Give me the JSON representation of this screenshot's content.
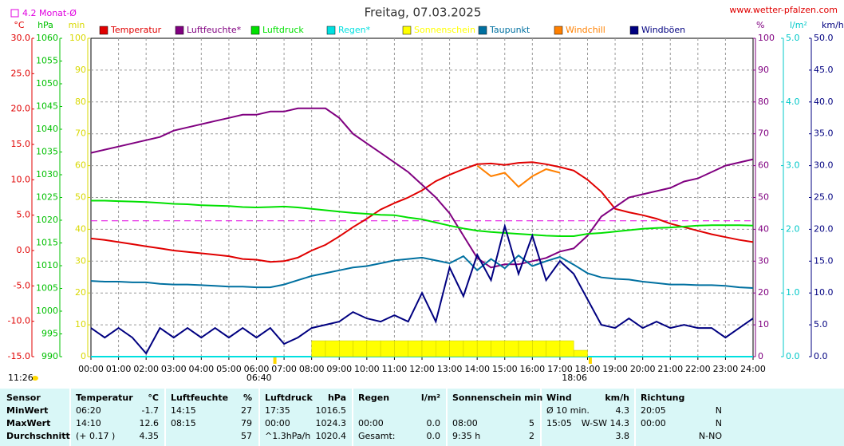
{
  "chart_data": {
    "type": "line",
    "title": "Freitag, 07.03.2025",
    "website": "www.wetter-pfalzen.com",
    "month_avg": {
      "value": 4.2,
      "label": "4.2 Monat-Ø",
      "axis": 0,
      "color": "#e000e0"
    },
    "daylength": "11:26",
    "sunrise": {
      "x": 6.667,
      "label": "06:40"
    },
    "sunset": {
      "x": 18.1,
      "label": "18:06"
    },
    "xlim": [
      0,
      24
    ],
    "xticks": [
      {
        "value": 0,
        "label": "00:00"
      },
      {
        "value": 1,
        "label": "01:00"
      },
      {
        "value": 2,
        "label": "02:00"
      },
      {
        "value": 3,
        "label": "03:00"
      },
      {
        "value": 4,
        "label": "04:00"
      },
      {
        "value": 5,
        "label": "05:00"
      },
      {
        "value": 6,
        "label": "06:00"
      },
      {
        "value": 7,
        "label": "07:00"
      },
      {
        "value": 8,
        "label": "08:00"
      },
      {
        "value": 9,
        "label": "09:00"
      },
      {
        "value": 10,
        "label": "10:00"
      },
      {
        "value": 11,
        "label": "11:00"
      },
      {
        "value": 12,
        "label": "12:00"
      },
      {
        "value": 13,
        "label": "13:00"
      },
      {
        "value": 14,
        "label": "14:00"
      },
      {
        "value": 15,
        "label": "15:00"
      },
      {
        "value": 16,
        "label": "16:00"
      },
      {
        "value": 17,
        "label": "17:00"
      },
      {
        "value": 18,
        "label": "18:00"
      },
      {
        "value": 19,
        "label": "19:00"
      },
      {
        "value": 20,
        "label": "20:00"
      },
      {
        "value": 21,
        "label": "21:00"
      },
      {
        "value": 22,
        "label": "22:00"
      },
      {
        "value": 23,
        "label": "23:00"
      },
      {
        "value": 24,
        "label": "24:00"
      }
    ],
    "grid": true,
    "y_axes": [
      {
        "unit": "°C",
        "color": "#e00000",
        "side": "left",
        "lim": [
          -15,
          30
        ],
        "ticks": [
          {
            "value": -15,
            "label": "-15.0"
          },
          {
            "value": -10,
            "label": "-10.0"
          },
          {
            "value": -5,
            "label": "-5.0"
          },
          {
            "value": 0,
            "label": "0.0"
          },
          {
            "value": 5,
            "label": "5.0"
          },
          {
            "value": 10,
            "label": "10.0"
          },
          {
            "value": 15,
            "label": "15.0"
          },
          {
            "value": 20,
            "label": "20.0"
          },
          {
            "value": 25,
            "label": "25.0"
          },
          {
            "value": 30,
            "label": "30.0"
          }
        ]
      },
      {
        "unit": "hPa",
        "color": "#00c000",
        "side": "left",
        "lim": [
          990,
          1060
        ],
        "ticks": [
          990,
          995,
          1000,
          1005,
          1010,
          1015,
          1020,
          1025,
          1030,
          1035,
          1040,
          1045,
          1050,
          1055,
          1060
        ]
      },
      {
        "unit": "min",
        "color": "#d8d800",
        "side": "left",
        "lim": [
          0,
          100
        ],
        "ticks": [
          0,
          10,
          20,
          30,
          40,
          50,
          60,
          70,
          80,
          90,
          100
        ]
      },
      {
        "unit": "%",
        "color": "#800080",
        "side": "right",
        "lim": [
          0,
          100
        ],
        "ticks": [
          0,
          10,
          20,
          30,
          40,
          50,
          60,
          70,
          80,
          90,
          100
        ]
      },
      {
        "unit": "l/m²",
        "color": "#00c8c8",
        "side": "right",
        "lim": [
          0,
          5
        ],
        "ticks": [
          {
            "value": 0,
            "label": "0.0"
          },
          {
            "value": 1,
            "label": "1.0"
          },
          {
            "value": 2,
            "label": "2.0"
          },
          {
            "value": 3,
            "label": "3.0"
          },
          {
            "value": 4,
            "label": "4.0"
          },
          {
            "value": 5,
            "label": "5.0"
          }
        ]
      },
      {
        "unit": "km/h",
        "color": "#000080",
        "side": "right",
        "lim": [
          0,
          50
        ],
        "ticks": [
          {
            "value": 0,
            "label": "0.0"
          },
          {
            "value": 5,
            "label": "5.0"
          },
          {
            "value": 10,
            "label": "10.0"
          },
          {
            "value": 15,
            "label": "15.0"
          },
          {
            "value": 20,
            "label": "20.0"
          },
          {
            "value": 25,
            "label": "25.0"
          },
          {
            "value": 30,
            "label": "30.0"
          },
          {
            "value": 35,
            "label": "35.0"
          },
          {
            "value": 40,
            "label": "40.0"
          },
          {
            "value": 45,
            "label": "45.0"
          },
          {
            "value": 50,
            "label": "50.0"
          }
        ]
      }
    ],
    "x": [
      0,
      0.5,
      1,
      1.5,
      2,
      2.5,
      3,
      3.5,
      4,
      4.5,
      5,
      5.5,
      6,
      6.5,
      7,
      7.5,
      8,
      8.5,
      9,
      9.5,
      10,
      10.5,
      11,
      11.5,
      12,
      12.5,
      13,
      13.5,
      14,
      14.5,
      15,
      15.5,
      16,
      16.5,
      17,
      17.5,
      18,
      18.5,
      19,
      19.5,
      20,
      20.5,
      21,
      21.5,
      22,
      22.5,
      23,
      23.5,
      24
    ],
    "series": [
      {
        "name": "Temperatur",
        "color": "#e00000",
        "axis": 0,
        "mark": "line",
        "values": [
          1.7,
          1.5,
          1.2,
          0.9,
          0.6,
          0.3,
          0.0,
          -0.2,
          -0.4,
          -0.6,
          -0.8,
          -1.2,
          -1.3,
          -1.6,
          -1.5,
          -1.0,
          0.0,
          0.8,
          2.0,
          3.3,
          4.5,
          5.8,
          6.7,
          7.5,
          8.5,
          9.8,
          10.7,
          11.5,
          12.2,
          12.3,
          12.1,
          12.4,
          12.5,
          12.2,
          11.8,
          11.3,
          10.0,
          8.3,
          5.9,
          5.4,
          5.0,
          4.5,
          3.8,
          3.3,
          2.8,
          2.3,
          1.9,
          1.5,
          1.2
        ]
      },
      {
        "name": "Luftfeuchte*",
        "color": "#800080",
        "axis": 3,
        "mark": "line",
        "values": [
          64,
          65,
          66,
          67,
          68,
          69,
          71,
          72,
          73,
          74,
          75,
          76,
          76,
          77,
          77,
          78,
          78,
          78,
          75,
          70,
          67,
          64,
          61,
          58,
          54,
          50,
          45,
          38,
          31,
          28,
          29,
          29,
          30,
          31,
          33,
          34,
          38,
          44,
          47,
          50,
          51,
          52,
          53,
          55,
          56,
          58,
          60,
          61,
          62
        ]
      },
      {
        "name": "Luftdruck",
        "color": "#00e000",
        "axis": 1,
        "mark": "line",
        "values": [
          1024.3,
          1024.3,
          1024.2,
          1024.1,
          1024.0,
          1023.8,
          1023.6,
          1023.5,
          1023.3,
          1023.2,
          1023.1,
          1022.9,
          1022.8,
          1022.9,
          1023.0,
          1022.8,
          1022.5,
          1022.2,
          1021.9,
          1021.6,
          1021.4,
          1021.2,
          1021.1,
          1020.6,
          1020.2,
          1019.5,
          1018.8,
          1018.2,
          1017.7,
          1017.4,
          1017.2,
          1017.0,
          1016.8,
          1016.6,
          1016.5,
          1016.5,
          1017.0,
          1017.2,
          1017.5,
          1017.8,
          1018.1,
          1018.3,
          1018.4,
          1018.6,
          1018.8,
          1018.9,
          1018.9,
          1018.9,
          1018.8
        ]
      },
      {
        "name": "Regen*",
        "color": "#00e0e0",
        "axis": 4,
        "mark": "line",
        "values": [
          0,
          0,
          0,
          0,
          0,
          0,
          0,
          0,
          0,
          0,
          0,
          0,
          0,
          0,
          0,
          0,
          0,
          0,
          0,
          0,
          0,
          0,
          0,
          0,
          0,
          0,
          0,
          0,
          0,
          0,
          0,
          0,
          0,
          0,
          0,
          0,
          0,
          0,
          0,
          0,
          0,
          0,
          0,
          0,
          0,
          0,
          0,
          0,
          0
        ]
      },
      {
        "name": "Sonnenschein",
        "color": "#ffff00",
        "axis": 2,
        "mark": "bar",
        "values": [
          0,
          0,
          0,
          0,
          0,
          0,
          0,
          0,
          0,
          0,
          0,
          0,
          0,
          0,
          0,
          0,
          5,
          5,
          5,
          5,
          5,
          5,
          5,
          5,
          5,
          5,
          5,
          5,
          5,
          5,
          5,
          5,
          5,
          5,
          5,
          2,
          0,
          0,
          0,
          0,
          0,
          0,
          0,
          0,
          0,
          0,
          0,
          0,
          0
        ]
      },
      {
        "name": "Taupunkt",
        "color": "#0070a0",
        "axis": 0,
        "mark": "line",
        "values": [
          -4.3,
          -4.4,
          -4.4,
          -4.5,
          -4.5,
          -4.7,
          -4.8,
          -4.8,
          -4.9,
          -5.0,
          -5.1,
          -5.1,
          -5.2,
          -5.2,
          -4.8,
          -4.2,
          -3.6,
          -3.2,
          -2.8,
          -2.4,
          -2.2,
          -1.8,
          -1.4,
          -1.2,
          -1.0,
          -1.4,
          -1.8,
          -0.8,
          -2.8,
          -1.2,
          -2.5,
          -0.7,
          -2.2,
          -1.5,
          -0.9,
          -2.0,
          -3.2,
          -3.8,
          -4.0,
          -4.1,
          -4.4,
          -4.6,
          -4.8,
          -4.8,
          -4.9,
          -4.9,
          -5.0,
          -5.2,
          -5.3
        ]
      },
      {
        "name": "Windchill",
        "color": "#ff8000",
        "axis": 0,
        "mark": "line",
        "values": [
          null,
          null,
          null,
          null,
          null,
          null,
          null,
          null,
          null,
          null,
          null,
          null,
          null,
          null,
          null,
          null,
          null,
          null,
          null,
          null,
          null,
          null,
          null,
          null,
          null,
          null,
          null,
          null,
          12.0,
          10.5,
          11.0,
          9.0,
          10.5,
          11.5,
          11.0,
          null,
          null,
          null,
          null,
          null,
          null,
          null,
          null,
          null,
          null,
          null,
          null,
          null,
          null
        ]
      },
      {
        "name": "Windböen",
        "color": "#000080",
        "axis": 5,
        "mark": "line",
        "values": [
          4.5,
          3.0,
          4.5,
          3.0,
          0.5,
          4.5,
          3.0,
          4.5,
          3.0,
          4.5,
          3.0,
          4.5,
          3.0,
          4.5,
          2.0,
          3.0,
          4.5,
          5.0,
          5.5,
          7.0,
          6.0,
          5.5,
          6.5,
          5.5,
          10.0,
          5.5,
          14.0,
          9.5,
          16.0,
          12.0,
          20.5,
          13.0,
          19.0,
          12.0,
          15.0,
          13.0,
          9.0,
          5.0,
          4.5,
          6.0,
          4.5,
          5.5,
          4.5,
          5.0,
          4.5,
          4.5,
          3.0,
          4.5,
          6.0
        ]
      }
    ]
  },
  "table": {
    "header": [
      [
        "Sensor",
        null
      ],
      [
        "Temperatur",
        "°C"
      ],
      [
        "Luftfeuchte",
        "%"
      ],
      [
        "Luftdruck",
        "hPa"
      ],
      [
        "Regen",
        "l/m²"
      ],
      [
        "Sonnenschein min",
        null
      ],
      [
        "Wind",
        "km/h"
      ],
      [
        "Richtung",
        null
      ]
    ],
    "rows": [
      [
        [
          "MinWert",
          null
        ],
        [
          "06:20",
          "-1.7"
        ],
        [
          "14:15",
          "27"
        ],
        [
          "17:35",
          "1016.5"
        ],
        [
          null,
          null
        ],
        [
          null,
          null
        ],
        [
          "Ø 10 min.",
          "4.3"
        ],
        [
          "20:05",
          "N"
        ]
      ],
      [
        [
          "MaxWert",
          null
        ],
        [
          "14:10",
          "12.6"
        ],
        [
          "08:15",
          "79"
        ],
        [
          "00:00",
          "1024.3"
        ],
        [
          "00:00",
          "0.0"
        ],
        [
          "08:00",
          "5"
        ],
        [
          "15:05",
          "W-SW 14.3"
        ],
        [
          "00:00",
          "N"
        ]
      ],
      [
        [
          "Durchschnitt",
          null
        ],
        [
          "(+ 0.17 )",
          "4.35"
        ],
        [
          null,
          "57"
        ],
        [
          "^1.3hPa/h",
          "1020.4"
        ],
        [
          "Gesamt:",
          "0.0"
        ],
        [
          "9:35 h",
          "2"
        ],
        [
          null,
          "3.8"
        ],
        [
          null,
          "N-NO"
        ]
      ]
    ]
  }
}
